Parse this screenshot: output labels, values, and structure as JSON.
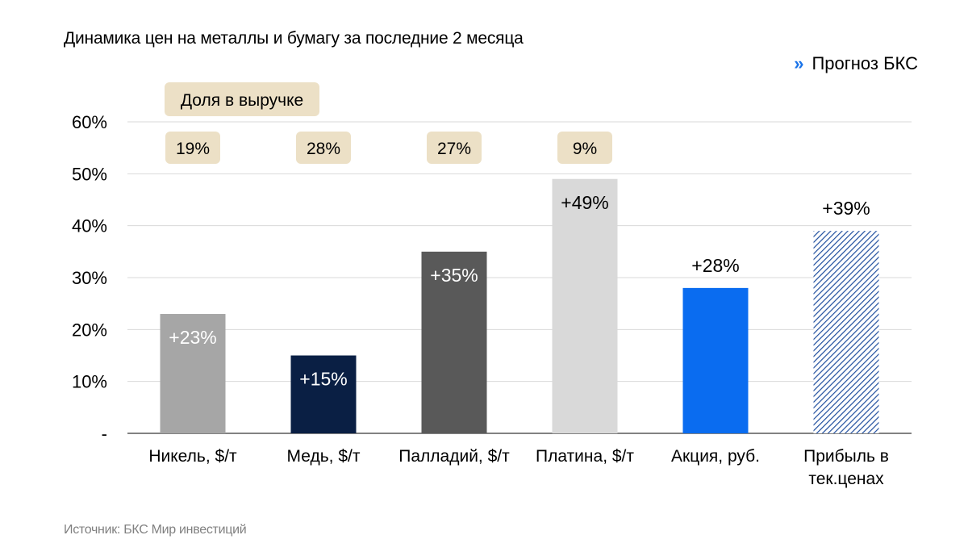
{
  "title": "Динамика цен на металлы и бумагу за последние 2 месяца",
  "legend": {
    "marker": "»",
    "label": "Прогноз БКС"
  },
  "source": "Источник: БКС Мир инвестиций",
  "share_header": "Доля в выручке",
  "chart_data": {
    "type": "bar",
    "title": "Динамика цен на металлы и бумагу за последние 2 месяца",
    "categories": [
      [
        "Никель, $/т"
      ],
      [
        "Медь, $/т"
      ],
      [
        "Палладий, $/т"
      ],
      [
        "Платина, $/т"
      ],
      [
        "Акция, руб."
      ],
      [
        "Прибыль в",
        "тек.ценах"
      ]
    ],
    "values": [
      23,
      15,
      35,
      49,
      28,
      39
    ],
    "data_labels": [
      "+23%",
      "+15%",
      "+35%",
      "+49%",
      "+28%",
      "+39%"
    ],
    "bar_colors": [
      "#a6a6a6",
      "#0a1f44",
      "#595959",
      "#d9d9d9",
      "#0a6cf0",
      "#1f4e9e"
    ],
    "bar_patterns": [
      "solid",
      "solid",
      "solid",
      "solid",
      "solid",
      "hatched"
    ],
    "label_colors": [
      "#ffffff",
      "#ffffff",
      "#ffffff",
      "#000000",
      "#000000",
      "#000000"
    ],
    "label_inside": [
      true,
      true,
      true,
      true,
      false,
      false
    ],
    "revenue_share": {
      "label": "Доля в выручке",
      "categories": [
        "Никель, $/т",
        "Медь, $/т",
        "Палладий, $/т",
        "Платина, $/т"
      ],
      "values": [
        "19%",
        "28%",
        "27%",
        "9%"
      ]
    },
    "legend": [
      "Прогноз БКС"
    ],
    "ylim": [
      0,
      60
    ],
    "yticks": [
      "-",
      "10%",
      "20%",
      "30%",
      "40%",
      "50%",
      "60%"
    ],
    "grid": true,
    "legend_position": "top-right"
  }
}
